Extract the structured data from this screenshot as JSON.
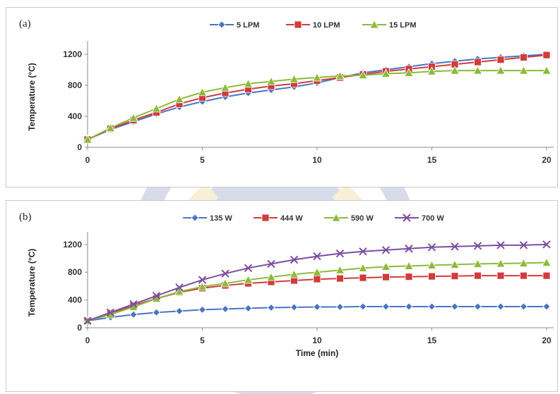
{
  "chart_data": [
    {
      "type": "line",
      "panel_label": "(a)",
      "ylabel": "Temperature (°C)",
      "xlabel": "",
      "xlim": [
        0,
        20
      ],
      "ylim": [
        0,
        1300
      ],
      "xticks": [
        "0",
        "5",
        "10",
        "15",
        "20"
      ],
      "yticks": [
        "0",
        "400",
        "800",
        "1200"
      ],
      "legend_placement": "top-center",
      "x": [
        0,
        1,
        2,
        3,
        4,
        5,
        6,
        7,
        8,
        9,
        10,
        11,
        12,
        13,
        14,
        15,
        16,
        17,
        18,
        19,
        20
      ],
      "series": [
        {
          "name": "5 LPM",
          "color": "#4a74c4",
          "marker": "diamond",
          "values": [
            100,
            230,
            330,
            430,
            520,
            590,
            650,
            700,
            740,
            780,
            830,
            900,
            960,
            1000,
            1040,
            1080,
            1110,
            1140,
            1160,
            1180,
            1200
          ]
        },
        {
          "name": "10 LPM",
          "color": "#d03c3c",
          "marker": "square",
          "values": [
            100,
            240,
            350,
            450,
            560,
            640,
            700,
            750,
            790,
            820,
            860,
            900,
            940,
            980,
            1010,
            1040,
            1070,
            1100,
            1130,
            1160,
            1190
          ]
        },
        {
          "name": "15 LPM",
          "color": "#8dba3a",
          "marker": "triangle",
          "values": [
            100,
            250,
            380,
            500,
            620,
            710,
            770,
            820,
            850,
            880,
            900,
            920,
            930,
            950,
            960,
            980,
            990,
            990,
            990,
            990,
            990
          ]
        }
      ]
    },
    {
      "type": "line",
      "panel_label": "(b)",
      "ylabel": "Temperature (°C)",
      "xlabel": "Time (min)",
      "xlim": [
        0,
        20
      ],
      "ylim": [
        0,
        1300
      ],
      "xticks": [
        "0",
        "5",
        "10",
        "15",
        "20"
      ],
      "yticks": [
        "0",
        "400",
        "800",
        "1200"
      ],
      "legend_placement": "top-center",
      "x": [
        0,
        1,
        2,
        3,
        4,
        5,
        6,
        7,
        8,
        9,
        10,
        11,
        12,
        13,
        14,
        15,
        16,
        17,
        18,
        19,
        20
      ],
      "series": [
        {
          "name": "135 W",
          "color": "#4a74c4",
          "marker": "diamond",
          "values": [
            100,
            150,
            190,
            220,
            240,
            260,
            270,
            280,
            290,
            295,
            300,
            300,
            305,
            305,
            305,
            305,
            305,
            305,
            305,
            305,
            305
          ]
        },
        {
          "name": "444 W",
          "color": "#d03c3c",
          "marker": "square",
          "values": [
            100,
            210,
            320,
            420,
            510,
            570,
            610,
            640,
            660,
            680,
            700,
            710,
            720,
            730,
            735,
            740,
            745,
            750,
            750,
            750,
            750
          ]
        },
        {
          "name": "590 W",
          "color": "#8dba3a",
          "marker": "triangle",
          "values": [
            100,
            190,
            300,
            420,
            520,
            590,
            640,
            690,
            730,
            770,
            800,
            830,
            860,
            880,
            890,
            900,
            910,
            920,
            925,
            930,
            940
          ]
        },
        {
          "name": "700 W",
          "color": "#7b4fa3",
          "marker": "x",
          "values": [
            100,
            220,
            340,
            460,
            580,
            690,
            780,
            860,
            920,
            980,
            1030,
            1070,
            1100,
            1120,
            1140,
            1160,
            1170,
            1180,
            1190,
            1190,
            1200
          ]
        }
      ]
    }
  ]
}
